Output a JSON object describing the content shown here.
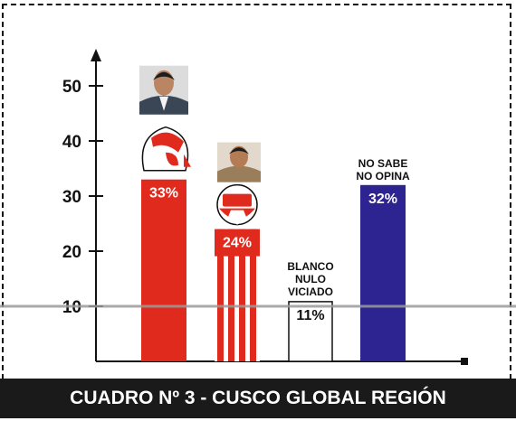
{
  "caption": "CUADRO Nº 3 - CUSCO GLOBAL REGIÓN",
  "chart_data": {
    "type": "bar",
    "title": "CUADRO Nº 3 - CUSCO GLOBAL REGIÓN",
    "ylim": [
      0,
      55
    ],
    "yticks": [
      10,
      20,
      30,
      40,
      50
    ],
    "grid": false,
    "reference_line": 10,
    "bars": [
      {
        "value": 33,
        "label": "33%",
        "category_label": [],
        "fill": "#e12a1e",
        "style": "solid",
        "icon": "red-chullo-hat-logo-with-candidate-photo"
      },
      {
        "value": 24,
        "label": "24%",
        "category_label": [],
        "fill": "#e12a1e",
        "style": "striped",
        "icon": "apu-soccer-ball-logo-with-candidate-photo"
      },
      {
        "value": 11,
        "label": "11%",
        "category_label": [
          "BLANCO",
          "NULO",
          "VICIADO"
        ],
        "fill": "#ffffff",
        "style": "outline",
        "icon": ""
      },
      {
        "value": 32,
        "label": "32%",
        "category_label": [
          "NO SABE",
          "NO OPINA"
        ],
        "fill": "#2d2491",
        "style": "solid",
        "icon": ""
      }
    ],
    "colors": {
      "red": "#e12a1e",
      "blue": "#2d2491",
      "reference": "#9a9a9a",
      "caption_bg": "#1a1a1a"
    }
  }
}
